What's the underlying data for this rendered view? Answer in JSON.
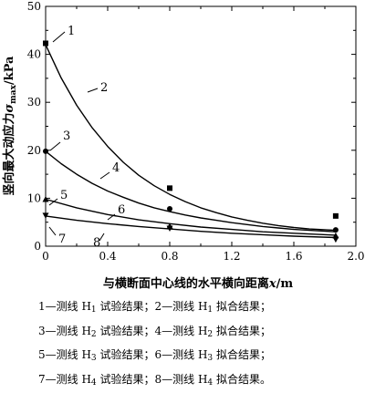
{
  "chart_data": {
    "type": "scatter",
    "xlabel": {
      "prefix": "与横断面中心线的水平横向距离",
      "var": "x",
      "unit": "/m"
    },
    "ylabel": {
      "prefix": "竖向最大动应力",
      "var": "σ",
      "sub": "max",
      "unit": "/kPa"
    },
    "xlim": [
      0,
      2.0
    ],
    "ylim": [
      0,
      50
    ],
    "xticks": [
      "0",
      "0.4",
      "0.8",
      "1.2",
      "1.6",
      "2.0"
    ],
    "xtick_values": [
      0,
      0.4,
      0.8,
      1.2,
      1.6,
      2.0
    ],
    "yticks": [
      "0",
      "10",
      "20",
      "30",
      "40",
      "50"
    ],
    "ytick_values": [
      0,
      10,
      20,
      30,
      40,
      50
    ],
    "grid": false,
    "series": [
      {
        "label": "1",
        "kind": "points",
        "marker": "square",
        "x": [
          0,
          0.8,
          1.87
        ],
        "y": [
          42.3,
          12.1,
          6.3
        ]
      },
      {
        "label": "2",
        "kind": "line",
        "x": [
          0,
          0.1,
          0.2,
          0.3,
          0.4,
          0.5,
          0.6,
          0.7,
          0.8,
          0.9,
          1.0,
          1.1,
          1.2,
          1.3,
          1.4,
          1.5,
          1.6,
          1.7,
          1.87
        ],
        "y": [
          42.0,
          35.1,
          29.4,
          24.7,
          20.8,
          17.5,
          14.8,
          12.6,
          10.8,
          9.3,
          8.0,
          7.0,
          6.1,
          5.4,
          4.8,
          4.3,
          3.9,
          3.6,
          3.3
        ]
      },
      {
        "label": "3",
        "kind": "points",
        "marker": "circle",
        "x": [
          0,
          0.8,
          1.87
        ],
        "y": [
          19.8,
          7.8,
          3.4
        ]
      },
      {
        "label": "4",
        "kind": "line",
        "x": [
          0,
          0.1,
          0.2,
          0.3,
          0.4,
          0.5,
          0.6,
          0.7,
          0.8,
          0.9,
          1.0,
          1.1,
          1.2,
          1.3,
          1.4,
          1.5,
          1.6,
          1.7,
          1.87
        ],
        "y": [
          19.8,
          17.2,
          15.0,
          13.1,
          11.5,
          10.2,
          9.0,
          8.0,
          7.2,
          6.5,
          5.9,
          5.4,
          4.9,
          4.5,
          4.1,
          3.8,
          3.5,
          3.3,
          3.0
        ]
      },
      {
        "label": "5",
        "kind": "points",
        "marker": "triangle-up",
        "x": [
          0,
          0.8,
          1.87
        ],
        "y": [
          9.8,
          4.2,
          2.2
        ]
      },
      {
        "label": "6",
        "kind": "line",
        "x": [
          0,
          0.2,
          0.4,
          0.6,
          0.8,
          1.0,
          1.2,
          1.4,
          1.6,
          1.87
        ],
        "y": [
          9.8,
          8.0,
          6.6,
          5.5,
          4.7,
          4.0,
          3.5,
          3.0,
          2.7,
          2.3
        ]
      },
      {
        "label": "7",
        "kind": "points",
        "marker": "triangle-down",
        "x": [
          0,
          0.8,
          1.87
        ],
        "y": [
          6.4,
          3.7,
          1.4
        ]
      },
      {
        "label": "8",
        "kind": "line",
        "x": [
          0,
          0.2,
          0.4,
          0.6,
          0.8,
          1.0,
          1.2,
          1.4,
          1.6,
          1.87
        ],
        "y": [
          6.3,
          5.4,
          4.7,
          4.1,
          3.6,
          3.1,
          2.7,
          2.4,
          2.1,
          1.8
        ]
      }
    ],
    "annotations": [
      {
        "text": "1",
        "series": "1"
      },
      {
        "text": "2",
        "series": "2"
      },
      {
        "text": "3",
        "series": "3"
      },
      {
        "text": "4",
        "series": "4"
      },
      {
        "text": "5",
        "series": "5"
      },
      {
        "text": "6",
        "series": "6"
      },
      {
        "text": "7",
        "series": "7"
      },
      {
        "text": "8",
        "series": "8"
      }
    ],
    "legend": {
      "placement": "bottom",
      "rows": [
        {
          "a": {
            "n": "1",
            "text": "—测线 H",
            "sub": "1",
            "result": "试验结果；"
          },
          "b": {
            "n": "2",
            "text": "—测线 H",
            "sub": "1",
            "result": "拟合结果；"
          }
        },
        {
          "a": {
            "n": "3",
            "text": "—测线 H",
            "sub": "2",
            "result": "试验结果；"
          },
          "b": {
            "n": "4",
            "text": "—测线 H",
            "sub": "2",
            "result": "拟合结果；"
          }
        },
        {
          "a": {
            "n": "5",
            "text": "—测线 H",
            "sub": "3",
            "result": "试验结果；"
          },
          "b": {
            "n": "6",
            "text": "—测线 H",
            "sub": "3",
            "result": "拟合结果；"
          }
        },
        {
          "a": {
            "n": "7",
            "text": "—测线 H",
            "sub": "4",
            "result": "试验结果；"
          },
          "b": {
            "n": "8",
            "text": "—测线 H",
            "sub": "4",
            "result": "拟合结果。"
          }
        }
      ]
    }
  }
}
